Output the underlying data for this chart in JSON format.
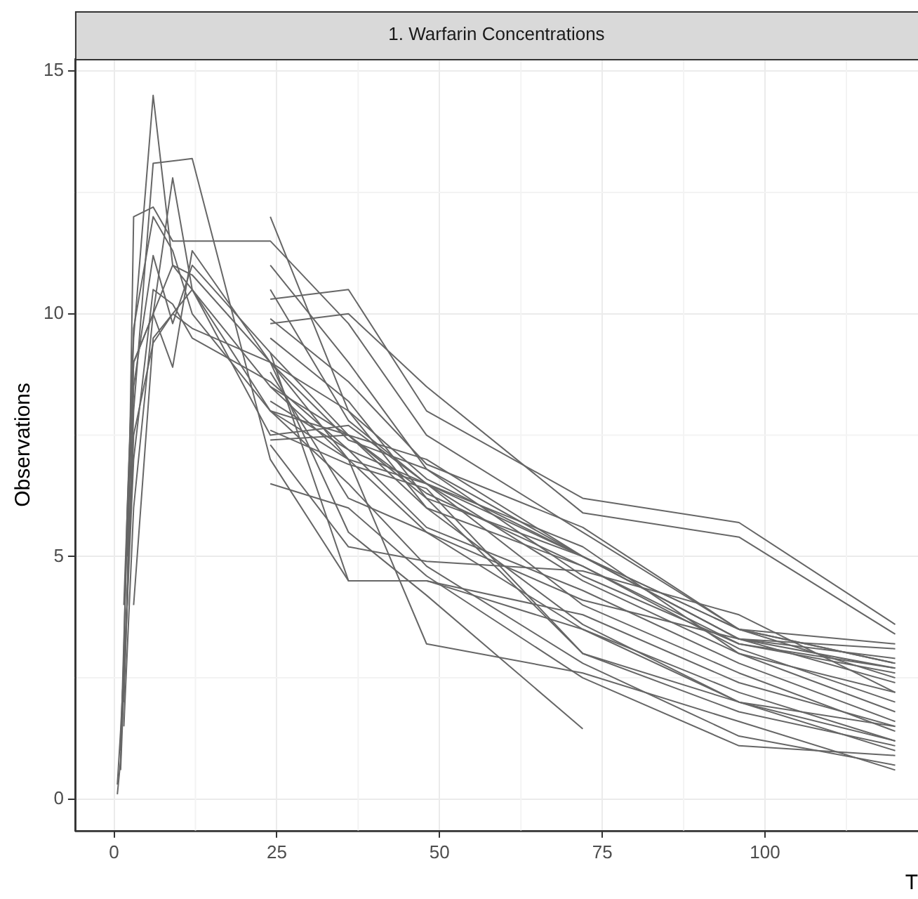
{
  "chart_data": {
    "type": "line",
    "title": "1. Warfarin Concentrations",
    "xlabel": "T",
    "ylabel": "Observations",
    "xlim": [
      -6,
      123.5
    ],
    "ylim": [
      -0.65,
      15.25
    ],
    "xticks": [
      0,
      25,
      50,
      75,
      100
    ],
    "yticks": [
      0,
      5,
      10,
      15
    ],
    "grid": true,
    "legend": false,
    "marker": "none",
    "line_style": "solid",
    "series": [
      {
        "color": "#666666",
        "x": [
          1.5,
          3,
          6,
          9,
          12,
          24,
          36,
          48,
          72,
          96,
          120
        ],
        "values": [
          4.0,
          9.5,
          14.5,
          11.0,
          10.5,
          8.0,
          7.0,
          6.5,
          5.0,
          3.5,
          2.8
        ]
      },
      {
        "color": "#666666",
        "x": [
          1.5,
          3,
          6,
          12,
          24,
          36,
          48,
          72,
          96,
          120
        ],
        "values": [
          2.0,
          8.0,
          13.1,
          13.2,
          7.0,
          4.5,
          4.5,
          3.5,
          2.2,
          1.2
        ]
      },
      {
        "color": "#666666",
        "x": [
          1,
          2,
          3,
          6,
          9,
          12,
          24,
          36,
          48,
          72,
          96,
          120
        ],
        "values": [
          1.0,
          5.5,
          9.0,
          10.0,
          12.8,
          10.5,
          8.5,
          7.5,
          6.2,
          5.0,
          3.3,
          2.7
        ]
      },
      {
        "color": "#666666",
        "x": [
          2,
          3,
          6,
          9,
          12,
          24,
          36,
          48,
          72,
          96,
          120
        ],
        "values": [
          4.0,
          12.0,
          12.2,
          11.5,
          11.5,
          11.5,
          9.8,
          7.5,
          5.5,
          3.5,
          2.5
        ]
      },
      {
        "color": "#666666",
        "x": [
          24,
          36,
          48,
          72,
          96,
          120
        ],
        "values": [
          12.0,
          8.0,
          6.6,
          5.0,
          3.5,
          2.8
        ]
      },
      {
        "color": "#666666",
        "x": [
          24,
          36,
          48,
          72,
          96,
          120
        ],
        "values": [
          10.3,
          10.5,
          8.0,
          6.2,
          5.7,
          3.6
        ]
      },
      {
        "color": "#666666",
        "x": [
          24,
          36,
          48,
          72,
          96,
          120
        ],
        "values": [
          9.8,
          10.0,
          8.5,
          5.9,
          5.4,
          3.4
        ]
      },
      {
        "color": "#666666",
        "x": [
          0.5,
          1,
          1.5,
          2,
          3,
          6,
          9,
          12,
          24,
          36,
          48,
          72,
          96,
          120
        ],
        "values": [
          0.1,
          0.8,
          3.0,
          5.9,
          9.7,
          12.0,
          11.3,
          10.0,
          8.0,
          7.5,
          6.0,
          3.6,
          2.0,
          1.2
        ]
      },
      {
        "color": "#666666",
        "x": [
          1.5,
          3,
          6,
          9,
          12,
          24,
          36,
          48,
          72
        ],
        "values": [
          1.5,
          6.0,
          10.0,
          11.0,
          10.8,
          9.0,
          5.5,
          4.2,
          1.45
        ]
      },
      {
        "color": "#666666",
        "x": [
          1,
          2,
          3,
          6,
          9,
          12,
          24,
          36,
          48,
          72,
          96,
          120
        ],
        "values": [
          0.6,
          4.0,
          8.5,
          11.2,
          9.8,
          11.0,
          9.2,
          7.5,
          6.3,
          4.8,
          3.2,
          2.6
        ]
      },
      {
        "color": "#666666",
        "x": [
          24,
          36,
          48,
          72,
          96,
          120
        ],
        "values": [
          9.2,
          4.5,
          4.5,
          3.8,
          2.4,
          1.5
        ]
      },
      {
        "color": "#666666",
        "x": [
          2,
          3,
          6,
          9,
          12,
          24,
          36,
          48,
          72,
          96,
          120
        ],
        "values": [
          5.0,
          9.0,
          10.0,
          8.9,
          11.3,
          9.0,
          7.0,
          5.5,
          3.5,
          2.0,
          1.0
        ]
      },
      {
        "color": "#666666",
        "x": [
          3,
          6,
          12,
          24,
          36,
          48,
          72,
          96,
          120
        ],
        "values": [
          4.0,
          9.5,
          10.5,
          7.5,
          7.7,
          6.5,
          5.2,
          3.0,
          2.2
        ]
      },
      {
        "color": "#666666",
        "x": [
          24,
          36,
          48,
          72,
          96,
          120
        ],
        "values": [
          8.5,
          7.0,
          3.2,
          2.6,
          1.6,
          0.6
        ]
      },
      {
        "color": "#666666",
        "x": [
          1.5,
          3,
          6,
          9,
          12,
          24,
          36,
          48,
          72,
          96,
          120
        ],
        "values": [
          2.5,
          7.5,
          9.4,
          10.0,
          9.7,
          9.0,
          7.4,
          6.8,
          5.0,
          3.3,
          2.4
        ]
      },
      {
        "color": "#666666",
        "x": [
          24,
          36,
          48,
          72,
          96,
          120
        ],
        "values": [
          7.4,
          7.5,
          7.0,
          5.0,
          3.3,
          3.1
        ]
      },
      {
        "color": "#666666",
        "x": [
          24,
          36,
          48,
          72,
          96,
          120
        ],
        "values": [
          7.3,
          5.2,
          4.9,
          4.7,
          3.8,
          2.2
        ]
      },
      {
        "color": "#666666",
        "x": [
          24,
          36,
          48,
          72,
          96,
          120
        ],
        "values": [
          6.5,
          6.0,
          4.6,
          2.5,
          1.1,
          0.9
        ]
      },
      {
        "color": "#666666",
        "x": [
          0.5,
          1,
          2,
          3,
          6,
          9,
          12,
          24,
          36,
          48,
          72,
          96,
          120
        ],
        "values": [
          0.3,
          1.4,
          4.0,
          7.0,
          10.5,
          10.2,
          9.5,
          8.6,
          7.2,
          6.5,
          4.5,
          3.0,
          1.8
        ]
      },
      {
        "color": "#666666",
        "x": [
          24,
          36,
          48,
          72,
          96,
          120
        ],
        "values": [
          11.0,
          9.0,
          6.8,
          4.6,
          3.2,
          2.7
        ]
      },
      {
        "color": "#666666",
        "x": [
          24,
          36,
          48,
          72,
          96,
          120
        ],
        "values": [
          9.0,
          8.0,
          6.0,
          4.8,
          3.1,
          2.0
        ]
      },
      {
        "color": "#666666",
        "x": [
          24,
          36,
          48,
          72,
          96,
          120
        ],
        "values": [
          8.0,
          6.5,
          4.8,
          2.8,
          1.3,
          0.7
        ]
      },
      {
        "color": "#666666",
        "x": [
          24,
          36,
          48,
          72,
          96,
          120
        ],
        "values": [
          10.5,
          7.8,
          6.5,
          4.0,
          2.6,
          1.4
        ]
      },
      {
        "color": "#666666",
        "x": [
          24,
          36,
          48,
          72,
          96,
          120
        ],
        "values": [
          8.8,
          6.2,
          5.5,
          4.1,
          3.3,
          2.9
        ]
      },
      {
        "color": "#666666",
        "x": [
          24,
          36,
          48,
          72,
          96,
          120
        ],
        "values": [
          7.6,
          6.9,
          6.4,
          3.0,
          2.0,
          1.5
        ]
      },
      {
        "color": "#666666",
        "x": [
          24,
          36,
          48,
          72,
          96,
          120
        ],
        "values": [
          9.5,
          8.2,
          6.2,
          3.0,
          1.8,
          1.1
        ]
      },
      {
        "color": "#666666",
        "x": [
          24,
          36,
          48,
          72,
          96,
          120
        ],
        "values": [
          8.2,
          7.2,
          5.6,
          4.3,
          2.8,
          1.6
        ]
      },
      {
        "color": "#666666",
        "x": [
          24,
          36,
          48,
          72,
          96,
          120
        ],
        "values": [
          9.9,
          8.6,
          6.9,
          5.6,
          3.5,
          3.2
        ]
      }
    ]
  }
}
